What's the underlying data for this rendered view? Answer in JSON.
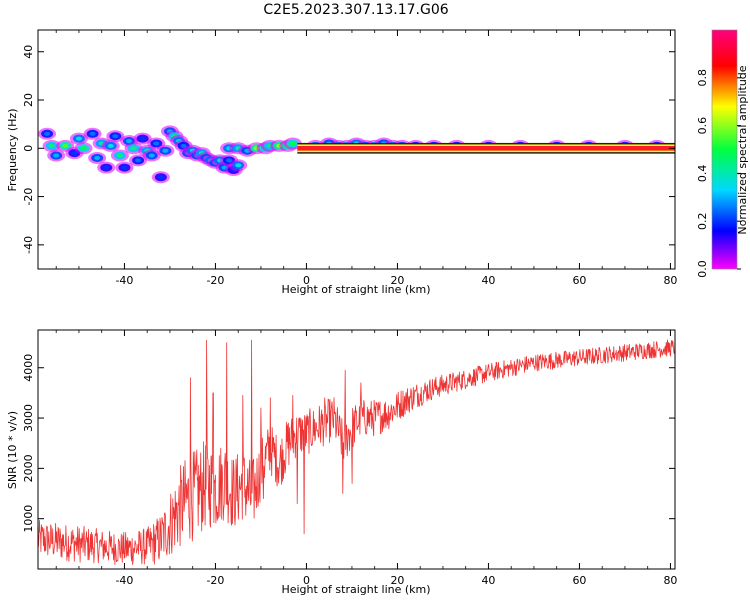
{
  "title": "C2E5.2023.307.13.17.G06",
  "colors": {
    "snr_line": "#ee3333",
    "frequency_band": "#ff1a2a",
    "colorbar_stops": [
      "#ff00ff",
      "#0000ff",
      "#00d8ff",
      "#00ff40",
      "#ffff00",
      "#ff0000",
      "#ff0080"
    ]
  },
  "chart_data": [
    {
      "id": "spectrogram",
      "type": "heatmap",
      "xlabel": "Height of straight line (km)",
      "ylabel": "Frequency (Hz)",
      "xlim": [
        -59,
        81
      ],
      "ylim": [
        -50,
        49
      ],
      "xticks": [
        -40,
        -20,
        0,
        20,
        40,
        60,
        80
      ],
      "xtick_labels": [
        "-40",
        "-20",
        "0",
        "20",
        "40",
        "60",
        "80"
      ],
      "yticks": [
        -40,
        -20,
        0,
        20,
        40
      ],
      "ytick_labels": [
        "-40",
        "-20",
        "0",
        "20",
        "40"
      ],
      "band": {
        "x_start": -2,
        "x_end": 81,
        "y_center": 0,
        "half_width": 1.6
      },
      "blobs": [
        {
          "x": -57,
          "y": 6,
          "amp": 0.25
        },
        {
          "x": -56,
          "y": 1,
          "amp": 0.45
        },
        {
          "x": -55,
          "y": -3,
          "amp": 0.3
        },
        {
          "x": -53,
          "y": 1,
          "amp": 0.55
        },
        {
          "x": -51,
          "y": -2,
          "amp": 0.2
        },
        {
          "x": -50,
          "y": 4,
          "amp": 0.35
        },
        {
          "x": -49,
          "y": 0,
          "amp": 0.5
        },
        {
          "x": -47,
          "y": 6,
          "amp": 0.25
        },
        {
          "x": -46,
          "y": -4,
          "amp": 0.3
        },
        {
          "x": -45,
          "y": 2,
          "amp": 0.4
        },
        {
          "x": -44,
          "y": -8,
          "amp": 0.2
        },
        {
          "x": -43,
          "y": 1,
          "amp": 0.35
        },
        {
          "x": -42,
          "y": 5,
          "amp": 0.25
        },
        {
          "x": -41,
          "y": -3,
          "amp": 0.45
        },
        {
          "x": -40,
          "y": -8,
          "amp": 0.2
        },
        {
          "x": -39,
          "y": 3,
          "amp": 0.3
        },
        {
          "x": -38,
          "y": 0,
          "amp": 0.45
        },
        {
          "x": -37,
          "y": -5,
          "amp": 0.25
        },
        {
          "x": -36,
          "y": 4,
          "amp": 0.2
        },
        {
          "x": -35,
          "y": -1,
          "amp": 0.4
        },
        {
          "x": -34,
          "y": -3,
          "amp": 0.3
        },
        {
          "x": -33,
          "y": 2,
          "amp": 0.25
        },
        {
          "x": -32,
          "y": -12,
          "amp": 0.2
        },
        {
          "x": -31,
          "y": -1,
          "amp": 0.3
        },
        {
          "x": -30,
          "y": 7,
          "amp": 0.3
        },
        {
          "x": -29,
          "y": 5,
          "amp": 0.45
        },
        {
          "x": -28,
          "y": 3,
          "amp": 0.35
        },
        {
          "x": -27,
          "y": 1,
          "amp": 0.25
        },
        {
          "x": -26,
          "y": -2,
          "amp": 0.3
        },
        {
          "x": -25,
          "y": -1,
          "amp": 0.35
        },
        {
          "x": -24,
          "y": -3,
          "amp": 0.3
        },
        {
          "x": -23,
          "y": -2,
          "amp": 0.4
        },
        {
          "x": -22,
          "y": -4,
          "amp": 0.3
        },
        {
          "x": -21,
          "y": -5,
          "amp": 0.35
        },
        {
          "x": -20,
          "y": -6,
          "amp": 0.3
        },
        {
          "x": -19,
          "y": -5,
          "amp": 0.35
        },
        {
          "x": -18,
          "y": -8,
          "amp": 0.3
        },
        {
          "x": -17,
          "y": -5,
          "amp": 0.25
        },
        {
          "x": -16,
          "y": -9,
          "amp": 0.2
        },
        {
          "x": -15,
          "y": -7,
          "amp": 0.35
        },
        {
          "x": -17,
          "y": 0,
          "amp": 0.35
        },
        {
          "x": -15,
          "y": 0,
          "amp": 0.4
        },
        {
          "x": -13,
          "y": -1,
          "amp": 0.3
        },
        {
          "x": -11,
          "y": 0,
          "amp": 0.6
        },
        {
          "x": -9,
          "y": 0,
          "amp": 0.5
        },
        {
          "x": -8,
          "y": 1,
          "amp": 0.45
        },
        {
          "x": -6,
          "y": 1,
          "amp": 0.6
        },
        {
          "x": -4,
          "y": 1,
          "amp": 0.55
        },
        {
          "x": -3,
          "y": 2,
          "amp": 0.5
        },
        {
          "x": 2,
          "y": 1,
          "amp": 0.35
        },
        {
          "x": 5,
          "y": 2,
          "amp": 0.3
        },
        {
          "x": 7,
          "y": 1,
          "amp": 0.35
        },
        {
          "x": 9,
          "y": 1,
          "amp": 0.4
        },
        {
          "x": 11,
          "y": 2,
          "amp": 0.35
        },
        {
          "x": 13,
          "y": 1,
          "amp": 0.3
        },
        {
          "x": 15,
          "y": 1,
          "amp": 0.4
        },
        {
          "x": 17,
          "y": 2,
          "amp": 0.3
        },
        {
          "x": 19,
          "y": 1,
          "amp": 0.35
        },
        {
          "x": 21,
          "y": 1,
          "amp": 0.3
        },
        {
          "x": 24,
          "y": 1,
          "amp": 0.25
        },
        {
          "x": 28,
          "y": 1,
          "amp": 0.25
        },
        {
          "x": 33,
          "y": 1,
          "amp": 0.25
        },
        {
          "x": 40,
          "y": 1,
          "amp": 0.25
        },
        {
          "x": 47,
          "y": 1,
          "amp": 0.25
        },
        {
          "x": 55,
          "y": 1,
          "amp": 0.25
        },
        {
          "x": 62,
          "y": 1,
          "amp": 0.25
        },
        {
          "x": 70,
          "y": 1,
          "amp": 0.25
        },
        {
          "x": 77,
          "y": 1,
          "amp": 0.25
        }
      ]
    },
    {
      "id": "colorbar",
      "type": "heatmap",
      "ylabel": "Normalized spectral amplitude",
      "ylim": [
        0,
        1
      ],
      "yticks": [
        0.0,
        0.2,
        0.4,
        0.6,
        0.8
      ],
      "ytick_labels": [
        "0.0",
        "0.2",
        "0.4",
        "0.6",
        "0.8"
      ]
    },
    {
      "id": "snr",
      "type": "line",
      "xlabel": "Height of straight line (km)",
      "ylabel": "SNR (10 * v/v)",
      "xlim": [
        -59,
        81
      ],
      "ylim": [
        0,
        4750
      ],
      "xticks": [
        -40,
        -20,
        0,
        20,
        40,
        60,
        80
      ],
      "xtick_labels": [
        "-40",
        "-20",
        "0",
        "20",
        "40",
        "60",
        "80"
      ],
      "yticks": [
        1000,
        2000,
        3000,
        4000
      ],
      "ytick_labels": [
        "1000",
        "2000",
        "3000",
        "4000"
      ],
      "x": [
        -59,
        -55,
        -50,
        -45,
        -40,
        -35,
        -32,
        -30,
        -28,
        -26,
        -24,
        -22,
        -20,
        -18,
        -16,
        -14,
        -12,
        -10,
        -8,
        -6,
        -4,
        -2,
        0,
        2,
        4,
        6,
        8,
        10,
        12,
        15,
        18,
        21,
        24,
        28,
        32,
        36,
        40,
        45,
        50,
        55,
        60,
        65,
        70,
        75,
        81
      ],
      "y": [
        600,
        550,
        500,
        450,
        400,
        450,
        600,
        900,
        1200,
        1400,
        1500,
        1700,
        1600,
        1800,
        1500,
        1700,
        1400,
        2000,
        2400,
        2100,
        2500,
        2700,
        2700,
        2800,
        2900,
        3000,
        2500,
        2800,
        3000,
        3000,
        3100,
        3300,
        3450,
        3600,
        3700,
        3800,
        3900,
        4000,
        4100,
        4150,
        4200,
        4250,
        4300,
        4350,
        4400
      ],
      "noise": [
        500,
        500,
        500,
        450,
        450,
        500,
        700,
        900,
        1100,
        1200,
        1200,
        1200,
        1100,
        1100,
        1000,
        1000,
        1000,
        800,
        700,
        700,
        700,
        600,
        600,
        600,
        600,
        600,
        600,
        600,
        500,
        500,
        450,
        400,
        350,
        300,
        280,
        260,
        250,
        240,
        230,
        230,
        230,
        230,
        230,
        230,
        230
      ],
      "spikes": [
        {
          "x": -25.5,
          "y": 3800
        },
        {
          "x": -22,
          "y": 4550
        },
        {
          "x": -20.5,
          "y": 3500
        },
        {
          "x": -17.5,
          "y": 4500
        },
        {
          "x": -12,
          "y": 4550
        },
        {
          "x": -14,
          "y": 3450
        },
        {
          "x": -10,
          "y": 3200
        },
        {
          "x": -8,
          "y": 3400
        },
        {
          "x": -3,
          "y": 3450
        },
        {
          "x": 4,
          "y": 3400
        },
        {
          "x": 8.5,
          "y": 3950
        },
        {
          "x": 12,
          "y": 3700
        },
        {
          "x": -0.5,
          "y": 700
        },
        {
          "x": -2,
          "y": 1300
        },
        {
          "x": -9.5,
          "y": 1400
        },
        {
          "x": 8,
          "y": 1500
        },
        {
          "x": 10,
          "y": 1700
        }
      ]
    }
  ]
}
